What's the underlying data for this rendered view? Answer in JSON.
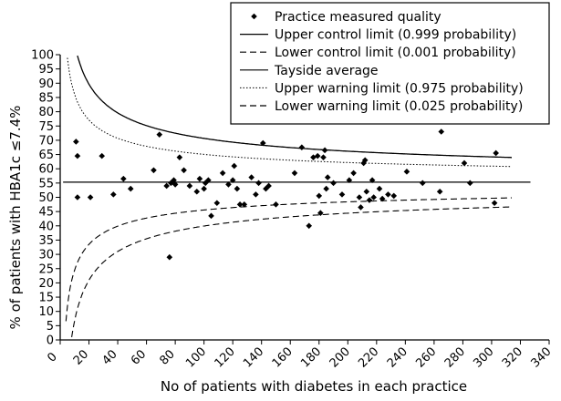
{
  "chart_data": {
    "type": "scatter",
    "title": "",
    "xlabel": "No of patients with diabetes in each practice",
    "ylabel": "% of patients with HBA1c ≤7.4%",
    "xlim": [
      0,
      340
    ],
    "ylim": [
      0,
      100
    ],
    "x_ticks": [
      "0",
      "20",
      "40",
      "60",
      "80",
      "100",
      "120",
      "140",
      "160",
      "180",
      "200",
      "220",
      "240",
      "260",
      "280",
      "300",
      "320",
      "340"
    ],
    "y_ticks": [
      "0",
      "5",
      "10",
      "15",
      "20",
      "25",
      "30",
      "35",
      "40",
      "45",
      "50",
      "55",
      "60",
      "65",
      "70",
      "75",
      "80",
      "85",
      "90",
      "95",
      "100"
    ],
    "grid": false,
    "legend_position": "top-right",
    "tayside_average": 55.3,
    "legend": [
      {
        "label": "Practice measured quality",
        "style": "diamond"
      },
      {
        "label": "Upper control limit (0.999 probability)",
        "style": "solid"
      },
      {
        "label": "Lower control limit (0.001 probability)",
        "style": "dashed"
      },
      {
        "label": "Tayside average",
        "style": "solid"
      },
      {
        "label": "Upper warning limit (0.975 probability)",
        "style": "dotted"
      },
      {
        "label": "Lower warning limit (0.025 probability)",
        "style": "dashed"
      }
    ],
    "points": [
      {
        "x": 11,
        "y": 69.5
      },
      {
        "x": 12,
        "y": 64.5
      },
      {
        "x": 12,
        "y": 50
      },
      {
        "x": 21,
        "y": 50
      },
      {
        "x": 29,
        "y": 64.5
      },
      {
        "x": 37,
        "y": 51
      },
      {
        "x": 44,
        "y": 56.5
      },
      {
        "x": 49,
        "y": 53
      },
      {
        "x": 65,
        "y": 59.5
      },
      {
        "x": 69,
        "y": 72
      },
      {
        "x": 74,
        "y": 54
      },
      {
        "x": 76,
        "y": 29
      },
      {
        "x": 77,
        "y": 55
      },
      {
        "x": 79,
        "y": 56
      },
      {
        "x": 80,
        "y": 54.5
      },
      {
        "x": 83,
        "y": 64
      },
      {
        "x": 86,
        "y": 59.5
      },
      {
        "x": 90,
        "y": 54
      },
      {
        "x": 95,
        "y": 52
      },
      {
        "x": 97,
        "y": 56.5
      },
      {
        "x": 100,
        "y": 53
      },
      {
        "x": 101,
        "y": 55
      },
      {
        "x": 103,
        "y": 56
      },
      {
        "x": 105,
        "y": 43.5
      },
      {
        "x": 109,
        "y": 48
      },
      {
        "x": 113,
        "y": 58.5
      },
      {
        "x": 117,
        "y": 54.5
      },
      {
        "x": 120,
        "y": 56
      },
      {
        "x": 121,
        "y": 61
      },
      {
        "x": 123,
        "y": 53
      },
      {
        "x": 125,
        "y": 47.5
      },
      {
        "x": 128,
        "y": 47.5
      },
      {
        "x": 133,
        "y": 57
      },
      {
        "x": 136,
        "y": 51
      },
      {
        "x": 138,
        "y": 55
      },
      {
        "x": 141,
        "y": 69
      },
      {
        "x": 143,
        "y": 53
      },
      {
        "x": 145,
        "y": 54
      },
      {
        "x": 150,
        "y": 47.5
      },
      {
        "x": 163,
        "y": 58.5
      },
      {
        "x": 168,
        "y": 67.5
      },
      {
        "x": 173,
        "y": 40
      },
      {
        "x": 176,
        "y": 64
      },
      {
        "x": 179,
        "y": 64.5
      },
      {
        "x": 180,
        "y": 50.5
      },
      {
        "x": 181,
        "y": 44.5
      },
      {
        "x": 183,
        "y": 64
      },
      {
        "x": 184,
        "y": 66.5
      },
      {
        "x": 185,
        "y": 53
      },
      {
        "x": 186,
        "y": 57
      },
      {
        "x": 190,
        "y": 55
      },
      {
        "x": 196,
        "y": 51
      },
      {
        "x": 201,
        "y": 56
      },
      {
        "x": 204,
        "y": 58.5
      },
      {
        "x": 208,
        "y": 50
      },
      {
        "x": 209,
        "y": 46.5
      },
      {
        "x": 211,
        "y": 62
      },
      {
        "x": 212,
        "y": 63
      },
      {
        "x": 213,
        "y": 52
      },
      {
        "x": 215,
        "y": 49
      },
      {
        "x": 217,
        "y": 56
      },
      {
        "x": 218,
        "y": 50
      },
      {
        "x": 222,
        "y": 53
      },
      {
        "x": 224,
        "y": 49.5
      },
      {
        "x": 228,
        "y": 51
      },
      {
        "x": 232,
        "y": 50.5
      },
      {
        "x": 241,
        "y": 59
      },
      {
        "x": 252,
        "y": 55
      },
      {
        "x": 264,
        "y": 52
      },
      {
        "x": 265,
        "y": 73
      },
      {
        "x": 281,
        "y": 62
      },
      {
        "x": 285,
        "y": 55
      },
      {
        "x": 302,
        "y": 48
      },
      {
        "x": 303,
        "y": 65.5
      }
    ]
  }
}
